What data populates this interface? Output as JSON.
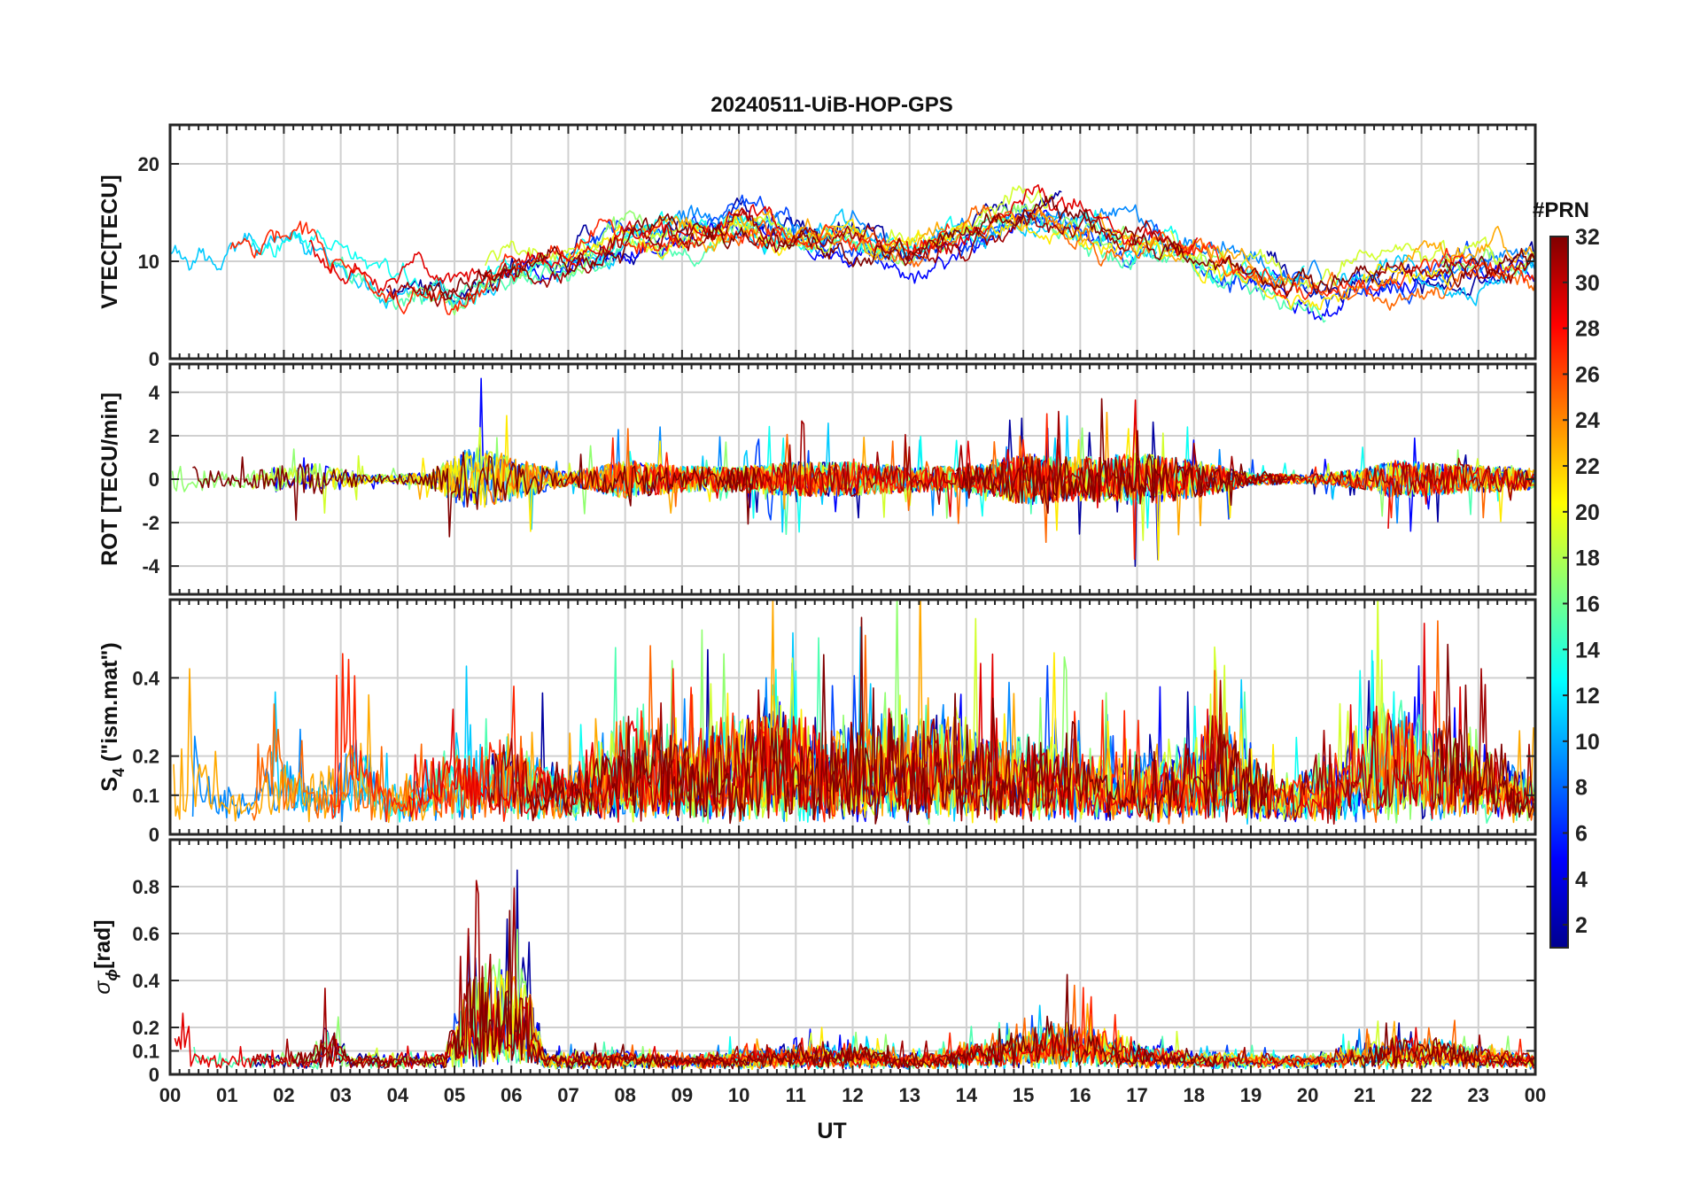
{
  "chart_data": {
    "title": "20240511-UiB-HOP-GPS",
    "type": "line",
    "x_unit": "hours (UT)",
    "xlabel": "UT",
    "xlim": [
      0,
      24
    ],
    "x_tick_labels": [
      "00",
      "01",
      "02",
      "03",
      "04",
      "05",
      "06",
      "07",
      "08",
      "09",
      "10",
      "11",
      "12",
      "13",
      "14",
      "15",
      "16",
      "17",
      "18",
      "19",
      "20",
      "21",
      "22",
      "23",
      "00"
    ],
    "panels": [
      {
        "id": "vtec",
        "ylabel": "VTEC[TECU]",
        "ylim": [
          0,
          24
        ],
        "yticks": [
          0,
          10,
          20
        ],
        "ytick_labels": [
          "0",
          "10",
          "20"
        ],
        "baseline": 9,
        "activity": [
          [
            0,
            1.5
          ],
          [
            0.5,
            1.0
          ],
          [
            2.2,
            3.0
          ],
          [
            2.8,
            1.0
          ],
          [
            4.0,
            -2.0
          ],
          [
            5.0,
            -2.5
          ],
          [
            6.0,
            0.5
          ],
          [
            7.0,
            1.0
          ],
          [
            8.0,
            3.5
          ],
          [
            9.0,
            3.5
          ],
          [
            10.0,
            5.0
          ],
          [
            11.0,
            3.5
          ],
          [
            12.0,
            3.5
          ],
          [
            13.0,
            2.0
          ],
          [
            14.0,
            4.0
          ],
          [
            15.0,
            6.5
          ],
          [
            16.0,
            5.0
          ],
          [
            17.0,
            3.0
          ],
          [
            18.0,
            1.5
          ],
          [
            19.0,
            -0.5
          ],
          [
            20.0,
            -1.5
          ],
          [
            21.0,
            -1.0
          ],
          [
            22.0,
            0.0
          ],
          [
            23.0,
            0.5
          ],
          [
            24.0,
            0.5
          ]
        ]
      },
      {
        "id": "rot",
        "ylabel": "ROT [TECU/min]",
        "ylim": [
          -5.3,
          5.3
        ],
        "yticks": [
          -4,
          -2,
          0,
          2,
          4
        ],
        "ytick_labels": [
          "-4",
          "-2",
          "0",
          "2",
          "4"
        ],
        "baseline": 0,
        "activity": [
          [
            0,
            0.8
          ],
          [
            1.0,
            0.3
          ],
          [
            2.5,
            0.8
          ],
          [
            3.5,
            0.2
          ],
          [
            4.5,
            0.3
          ],
          [
            5.3,
            1.5
          ],
          [
            6.0,
            1.0
          ],
          [
            7.0,
            0.3
          ],
          [
            8.0,
            0.9
          ],
          [
            9.0,
            0.6
          ],
          [
            10.0,
            0.6
          ],
          [
            11.0,
            0.8
          ],
          [
            12.0,
            0.8
          ],
          [
            13.0,
            0.6
          ],
          [
            14.0,
            0.6
          ],
          [
            15.0,
            1.2
          ],
          [
            16.0,
            1.0
          ],
          [
            17.0,
            1.2
          ],
          [
            18.0,
            0.9
          ],
          [
            19.0,
            0.3
          ],
          [
            20.0,
            0.2
          ],
          [
            21.0,
            0.5
          ],
          [
            21.5,
            0.9
          ],
          [
            22.5,
            0.7
          ],
          [
            24.0,
            0.5
          ]
        ]
      },
      {
        "id": "s4",
        "ylabel_main": "S",
        "ylabel_sub": "4",
        "ylabel_rest": " (\"ism.mat\")",
        "ylim": [
          0,
          0.6
        ],
        "yticks": [
          0,
          0.1,
          0.2,
          0.4
        ],
        "ytick_labels": [
          "0",
          "0.1",
          "0.2",
          "0.4"
        ],
        "baseline": 0.05,
        "activity": [
          [
            0,
            0.2
          ],
          [
            0.5,
            0.18
          ],
          [
            1.0,
            0.08
          ],
          [
            1.7,
            0.2
          ],
          [
            2.5,
            0.1
          ],
          [
            3.2,
            0.22
          ],
          [
            4.0,
            0.06
          ],
          [
            5.0,
            0.2
          ],
          [
            6.0,
            0.2
          ],
          [
            7.0,
            0.1
          ],
          [
            8.0,
            0.25
          ],
          [
            9.0,
            0.2
          ],
          [
            10.5,
            0.3
          ],
          [
            11.5,
            0.22
          ],
          [
            12.5,
            0.25
          ],
          [
            13.5,
            0.3
          ],
          [
            14.5,
            0.2
          ],
          [
            15.5,
            0.2
          ],
          [
            16.5,
            0.15
          ],
          [
            17.5,
            0.15
          ],
          [
            18.5,
            0.25
          ],
          [
            19.5,
            0.08
          ],
          [
            20.5,
            0.15
          ],
          [
            21.3,
            0.3
          ],
          [
            22.5,
            0.25
          ],
          [
            23.5,
            0.15
          ],
          [
            24.0,
            0.1
          ]
        ]
      },
      {
        "id": "sigma",
        "ylabel_main": "σ",
        "ylabel_sub": "ϕ",
        "ylabel_rest": "[rad]",
        "ylim": [
          0,
          1.0
        ],
        "yticks": [
          0,
          0.1,
          0.2,
          0.4,
          0.6,
          0.8
        ],
        "ytick_labels": [
          "0",
          "0.1",
          "0.2",
          "0.4",
          "0.6",
          "0.8"
        ],
        "baseline": 0.04,
        "activity": [
          [
            0,
            0.05
          ],
          [
            0.2,
            0.3
          ],
          [
            0.5,
            0.03
          ],
          [
            2.5,
            0.05
          ],
          [
            2.8,
            0.2
          ],
          [
            3.2,
            0.04
          ],
          [
            4.8,
            0.04
          ],
          [
            5.3,
            0.45
          ],
          [
            6.2,
            0.5
          ],
          [
            6.6,
            0.04
          ],
          [
            8.0,
            0.05
          ],
          [
            9.0,
            0.03
          ],
          [
            11.0,
            0.08
          ],
          [
            12.3,
            0.08
          ],
          [
            13.0,
            0.03
          ],
          [
            15.0,
            0.15
          ],
          [
            15.8,
            0.2
          ],
          [
            16.8,
            0.1
          ],
          [
            18.0,
            0.05
          ],
          [
            20.0,
            0.03
          ],
          [
            21.5,
            0.12
          ],
          [
            22.3,
            0.1
          ],
          [
            24.0,
            0.04
          ]
        ]
      }
    ],
    "colorbar": {
      "title": "#PRN",
      "range": [
        1,
        32
      ],
      "colormap": "jet",
      "tick_values": [
        2,
        4,
        6,
        8,
        10,
        12,
        14,
        16,
        18,
        20,
        22,
        24,
        26,
        28,
        30,
        32
      ],
      "tick_labels": [
        "2",
        "4",
        "6",
        "8",
        "10",
        "12",
        "14",
        "16",
        "18",
        "20",
        "22",
        "24",
        "26",
        "28",
        "30",
        "32"
      ]
    },
    "prn_series": [
      2,
      5,
      7,
      9,
      11,
      13,
      15,
      17,
      19,
      21,
      23,
      25,
      27,
      29,
      31,
      32
    ],
    "grid": true
  },
  "colors": {
    "axis": "#262626",
    "grid": "#d0d0d0",
    "background": "#ffffff"
  }
}
